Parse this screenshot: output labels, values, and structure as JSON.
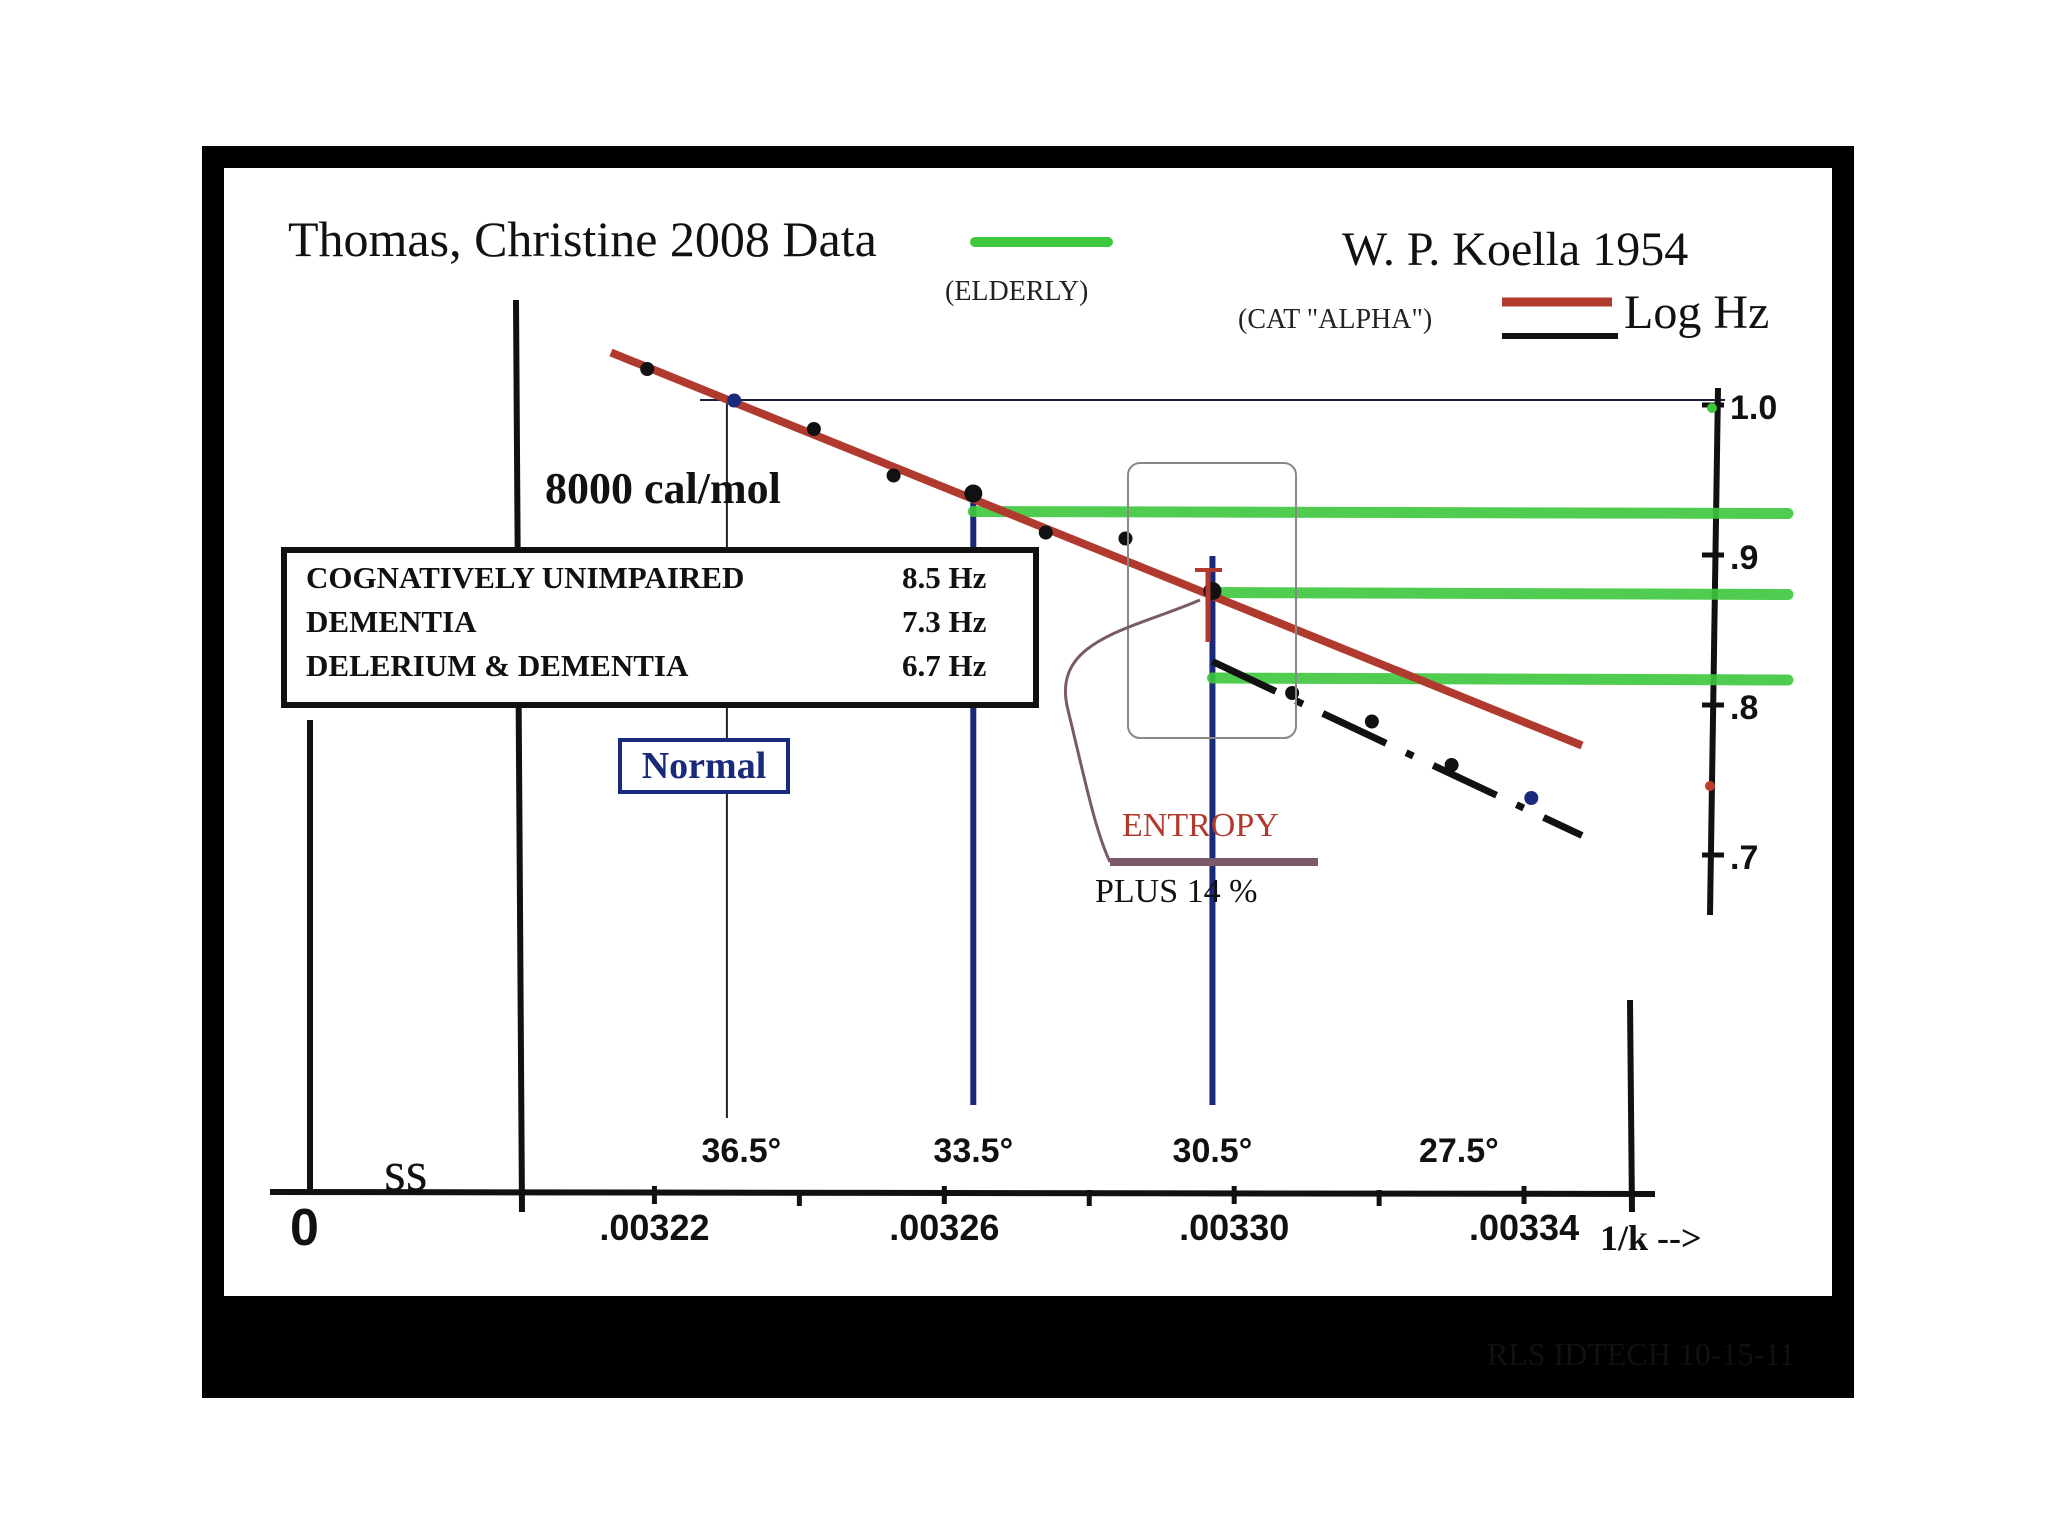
{
  "chart_data": {
    "type": "line",
    "title_left": "Thomas, Christine 2008 Data",
    "title_left_sub": "(ELDERLY)",
    "title_right": "W. P. Koella 1954",
    "title_right_sub": "(CAT \"ALPHA\")",
    "ylabel": "Log Hz",
    "xlabel": "1/k -->",
    "x_ticks": [
      ".00322",
      ".00326",
      ".00330",
      ".00334"
    ],
    "x_tick_values": [
      0.00322,
      0.00326,
      0.0033,
      0.00334
    ],
    "temp_ticks": [
      "36.5°",
      "33.5°",
      "30.5°",
      "27.5°"
    ],
    "temp_tick_x": [
      0.003232,
      0.003264,
      0.003297,
      0.003331
    ],
    "origin_label": "0",
    "y_ticks": [
      "1.0",
      ".9",
      ".8",
      ".7"
    ],
    "y_tick_values": [
      1.0,
      0.9,
      0.8,
      0.7
    ],
    "xlim": [
      0.003202,
      0.003356
    ],
    "ylim": [
      0.66,
      1.01
    ],
    "activation_label": "8000 cal/mol",
    "legend_box": [
      {
        "label": "COGNATIVELY UNIMPAIRED",
        "value": "8.5  Hz"
      },
      {
        "label": "DEMENTIA",
        "value": "7.3  Hz"
      },
      {
        "label": "DELERIUM & DEMENTIA",
        "value": "6.7 Hz"
      }
    ],
    "normal_label": "Normal",
    "entropy_label": "ENTROPY",
    "plus_label": "PLUS 14 %",
    "footer": "RLS IDTECH 10-15-11",
    "colors": {
      "red_line": "#b03a2e",
      "green": "#3ec83e",
      "blue": "#1a2a7a",
      "black": "#111111",
      "entropy": "#b03a2e",
      "connector": "#7a5a6a"
    },
    "series": [
      {
        "style": "red-solid",
        "x": [
          0.003214,
          0.003348
        ],
        "y": [
          1.035,
          0.773
        ]
      },
      {
        "style": "black-dashdot",
        "x": [
          0.003297,
          0.003348
        ],
        "y": [
          0.829,
          0.713
        ]
      }
    ],
    "points": [
      {
        "x": 0.003219,
        "y": 1.024
      },
      {
        "x": 0.003231,
        "y": 1.003
      },
      {
        "x": 0.003242,
        "y": 0.984
      },
      {
        "x": 0.003253,
        "y": 0.953
      },
      {
        "x": 0.003264,
        "y": 0.941
      },
      {
        "x": 0.003274,
        "y": 0.915
      },
      {
        "x": 0.003285,
        "y": 0.911
      },
      {
        "x": 0.003297,
        "y": 0.876
      },
      {
        "x": 0.003308,
        "y": 0.808
      },
      {
        "x": 0.003319,
        "y": 0.789
      },
      {
        "x": 0.00333,
        "y": 0.76
      },
      {
        "x": 0.003341,
        "y": 0.738
      }
    ],
    "green_levels": [
      0.929,
      0.875,
      0.818
    ],
    "blue_verticals": [
      0.003264,
      0.003297
    ],
    "thin_vertical": 0.00323
  }
}
